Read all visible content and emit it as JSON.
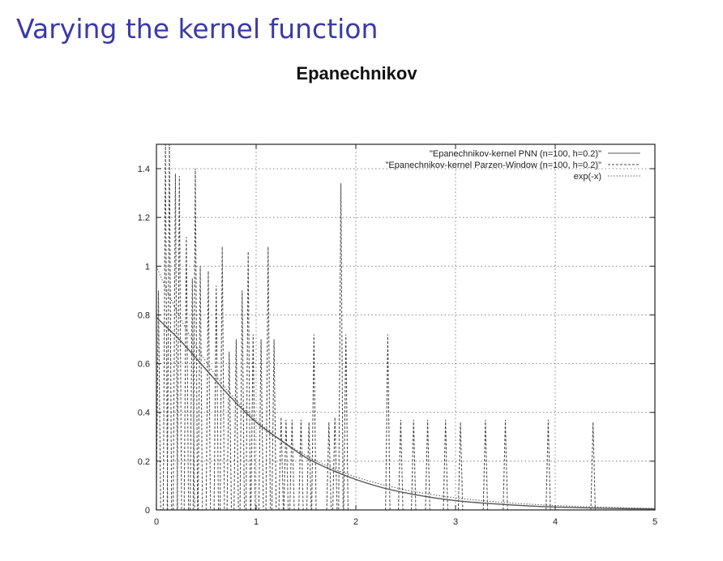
{
  "slide": {
    "title": "Varying the kernel function"
  },
  "chart_data": {
    "type": "line",
    "title": "Epanechnikov",
    "xlabel": "",
    "ylabel": "",
    "xlim": [
      0,
      5
    ],
    "ylim": [
      0,
      1.5
    ],
    "x_ticks": [
      0,
      1,
      2,
      3,
      4,
      5
    ],
    "y_ticks": [
      0,
      0.2,
      0.4,
      0.6,
      0.8,
      1,
      1.2,
      1.4
    ],
    "grid": true,
    "legend_position": "top-right",
    "series": [
      {
        "name": "\"Epanechnikov-kernel PNN (n=100, h=0.2)\"",
        "style": "solid",
        "color": "#555555",
        "x": [
          0,
          0.25,
          0.5,
          0.75,
          1.0,
          1.25,
          1.5,
          1.75,
          2.0,
          2.25,
          2.5,
          2.75,
          3.0,
          3.25,
          3.5,
          3.75,
          4.0,
          4.25,
          4.5,
          4.75,
          5.0
        ],
        "y": [
          0.79,
          0.69,
          0.575,
          0.46,
          0.36,
          0.285,
          0.215,
          0.165,
          0.125,
          0.093,
          0.07,
          0.052,
          0.038,
          0.029,
          0.022,
          0.016,
          0.012,
          0.009,
          0.007,
          0.005,
          0.004
        ]
      },
      {
        "name": "\"Epanechnikov-kernel Parzen-Window (n=100, h=0.2)\"",
        "style": "dashed",
        "color": "#444444",
        "spikes": [
          {
            "x": 0.02,
            "y": 0.9
          },
          {
            "x": 0.09,
            "y": 1.5
          },
          {
            "x": 0.13,
            "y": 1.5
          },
          {
            "x": 0.19,
            "y": 1.38
          },
          {
            "x": 0.23,
            "y": 1.37
          },
          {
            "x": 0.3,
            "y": 1.12
          },
          {
            "x": 0.36,
            "y": 0.95
          },
          {
            "x": 0.39,
            "y": 1.4
          },
          {
            "x": 0.44,
            "y": 1.0
          },
          {
            "x": 0.52,
            "y": 0.98
          },
          {
            "x": 0.6,
            "y": 0.92
          },
          {
            "x": 0.66,
            "y": 1.08
          },
          {
            "x": 0.73,
            "y": 0.65
          },
          {
            "x": 0.8,
            "y": 0.7
          },
          {
            "x": 0.86,
            "y": 0.9
          },
          {
            "x": 0.92,
            "y": 1.06
          },
          {
            "x": 0.97,
            "y": 0.72
          },
          {
            "x": 1.05,
            "y": 0.7
          },
          {
            "x": 1.12,
            "y": 1.08
          },
          {
            "x": 1.18,
            "y": 0.7
          },
          {
            "x": 1.25,
            "y": 0.38
          },
          {
            "x": 1.3,
            "y": 0.37
          },
          {
            "x": 1.36,
            "y": 0.37
          },
          {
            "x": 1.45,
            "y": 0.37
          },
          {
            "x": 1.53,
            "y": 0.36
          },
          {
            "x": 1.58,
            "y": 0.72
          },
          {
            "x": 1.73,
            "y": 0.36
          },
          {
            "x": 1.79,
            "y": 0.38
          },
          {
            "x": 1.85,
            "y": 1.34
          },
          {
            "x": 1.9,
            "y": 0.72
          },
          {
            "x": 2.32,
            "y": 0.72
          },
          {
            "x": 2.45,
            "y": 0.37
          },
          {
            "x": 2.58,
            "y": 0.37
          },
          {
            "x": 2.72,
            "y": 0.37
          },
          {
            "x": 2.9,
            "y": 0.37
          },
          {
            "x": 3.05,
            "y": 0.36
          },
          {
            "x": 3.3,
            "y": 0.37
          },
          {
            "x": 3.5,
            "y": 0.37
          },
          {
            "x": 3.93,
            "y": 0.37
          },
          {
            "x": 4.38,
            "y": 0.36
          }
        ]
      },
      {
        "name": "exp(-x)",
        "style": "dotted",
        "color": "#666666",
        "function": "exp(-x)"
      }
    ]
  }
}
